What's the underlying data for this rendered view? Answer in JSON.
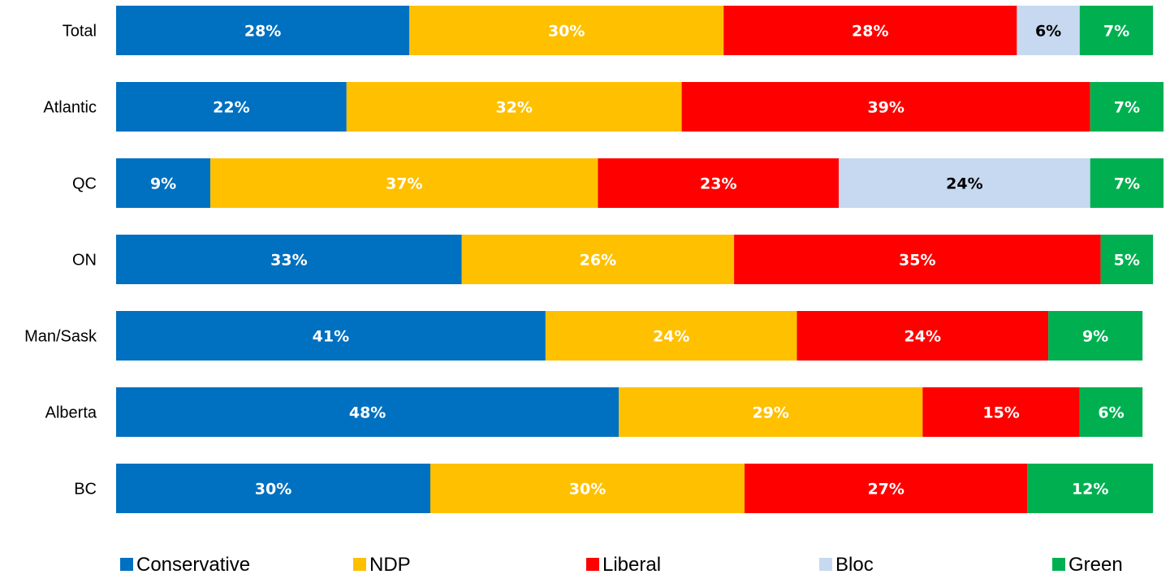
{
  "chart_data": {
    "type": "bar",
    "orientation": "horizontal",
    "stacked": true,
    "categories": [
      "Total",
      "Atlantic",
      "QC",
      "ON",
      "Man/Sask",
      "Alberta",
      "BC"
    ],
    "series": [
      {
        "name": "Conservative",
        "color": "#0070C0",
        "label_color": "#FFFFFF",
        "values": [
          28,
          22,
          9,
          33,
          41,
          48,
          30
        ]
      },
      {
        "name": "NDP",
        "color": "#FFC000",
        "label_color": "#FFFFFF",
        "values": [
          30,
          32,
          37,
          26,
          24,
          29,
          30
        ]
      },
      {
        "name": "Liberal",
        "color": "#FF0000",
        "label_color": "#FFFFFF",
        "values": [
          28,
          39,
          23,
          35,
          24,
          15,
          27
        ]
      },
      {
        "name": "Bloc",
        "color": "#C6D9F0",
        "label_color": "#000000",
        "values": [
          6,
          0,
          24,
          0,
          0,
          0,
          0
        ]
      },
      {
        "name": "Green",
        "color": "#00B050",
        "label_color": "#FFFFFF",
        "values": [
          7,
          7,
          7,
          5,
          9,
          6,
          12
        ]
      }
    ],
    "value_suffix": "%",
    "xlim": [
      0,
      100
    ],
    "grid": false,
    "legend_position": "bottom"
  }
}
